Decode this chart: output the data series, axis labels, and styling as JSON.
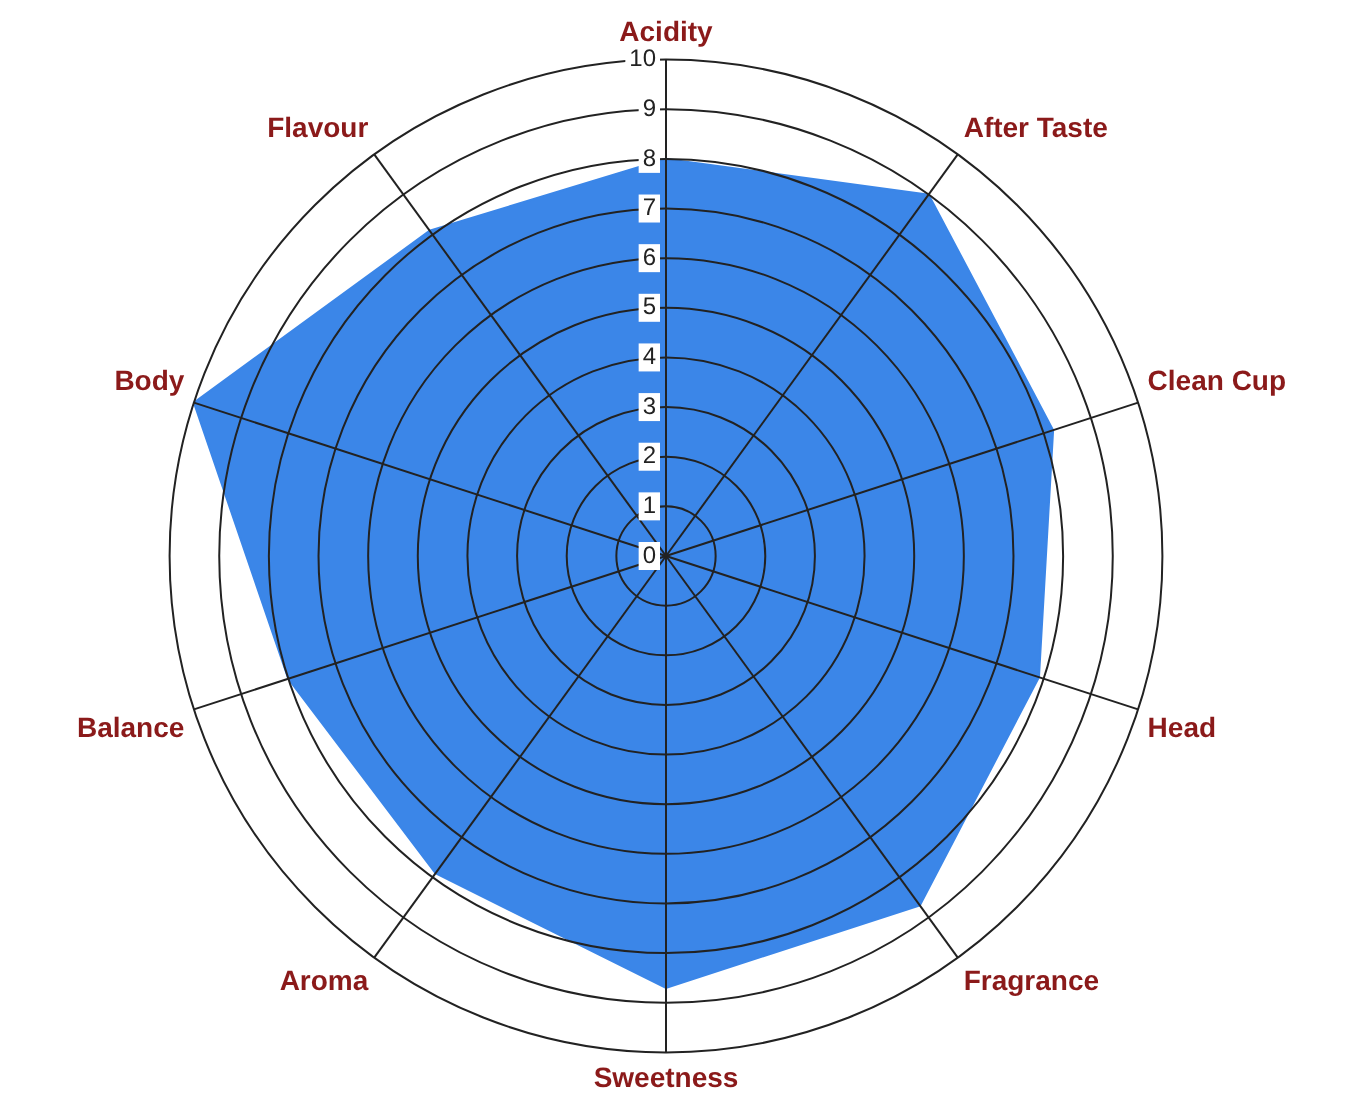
{
  "chart_data": {
    "type": "radar",
    "categories": [
      "Acidity",
      "After Taste",
      "Clean Cup",
      "Head",
      "Fragrance",
      "Sweetness",
      "Aroma",
      "Balance",
      "Body",
      "Flavour"
    ],
    "series": [
      {
        "color": "#3b86e8",
        "values": [
          8,
          9,
          8.2,
          7.9,
          8.7,
          8.7,
          7.9,
          8,
          10,
          8.1
        ]
      }
    ],
    "ylim": [
      0,
      10
    ],
    "yticks": [
      0,
      1,
      2,
      3,
      4,
      5,
      6,
      7,
      8,
      9,
      10
    ],
    "grid": true,
    "legend": false
  }
}
